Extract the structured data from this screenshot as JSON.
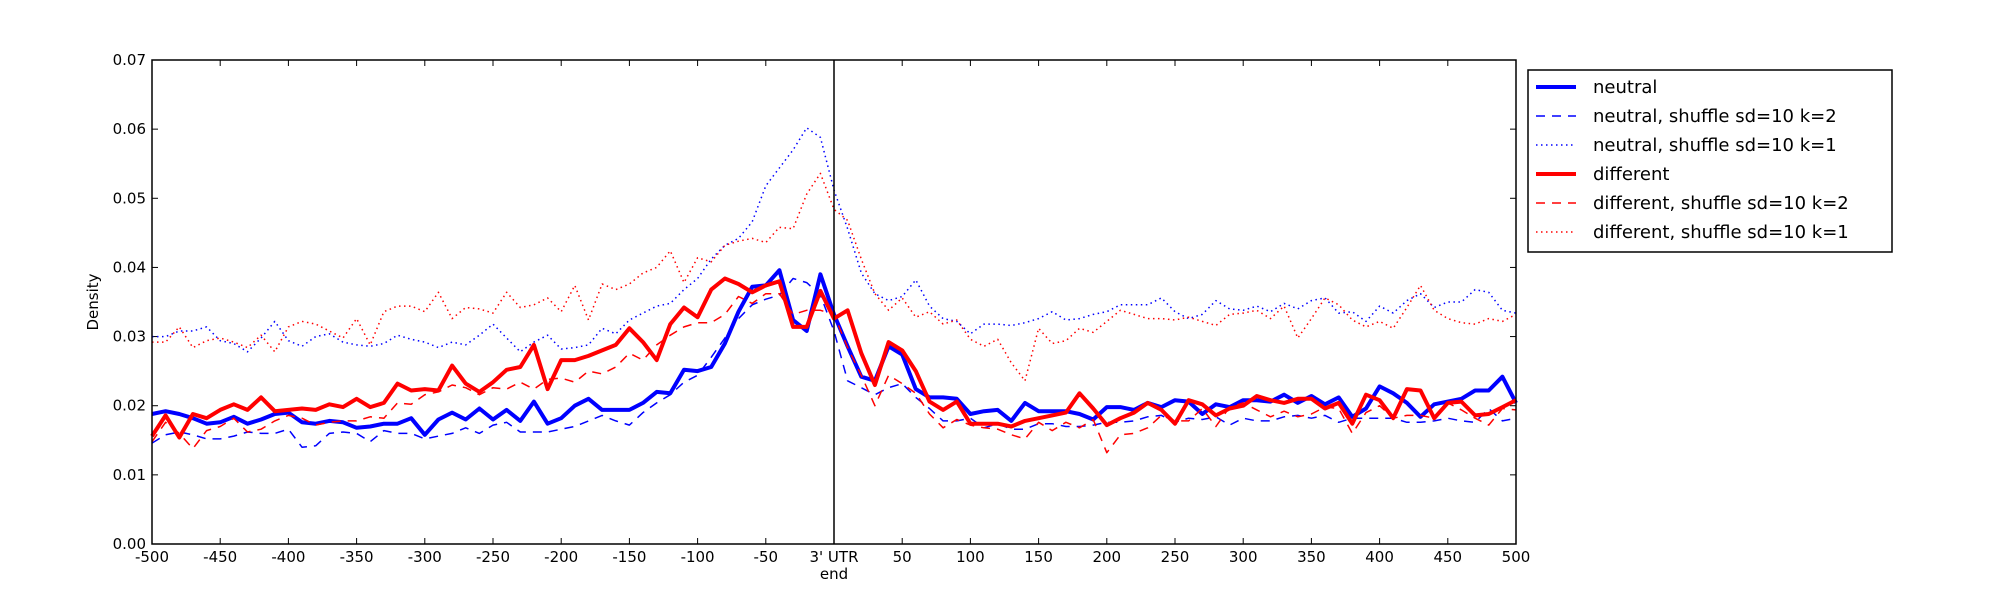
{
  "chart_data": {
    "type": "line",
    "title": "",
    "xlabel": "",
    "ylabel": "Density",
    "xlim": [
      -500,
      500
    ],
    "ylim": [
      0,
      0.07
    ],
    "xticks": [
      -500,
      -450,
      -400,
      -350,
      -300,
      -250,
      -200,
      -150,
      -100,
      -50,
      0,
      50,
      100,
      150,
      200,
      250,
      300,
      350,
      400,
      450,
      500
    ],
    "xtick_labels": [
      "-500",
      "-450",
      "-400",
      "-350",
      "-300",
      "-250",
      "-200",
      "-150",
      "-100",
      "-50",
      "3' UTR",
      "50",
      "100",
      "150",
      "200",
      "250",
      "300",
      "350",
      "400",
      "450",
      "500"
    ],
    "xtick_sublabel": "end",
    "yticks": [
      0,
      0.01,
      0.02,
      0.03,
      0.04,
      0.05,
      0.06,
      0.07
    ],
    "ytick_labels": [
      "0.00",
      "0.01",
      "0.02",
      "0.03",
      "0.04",
      "0.05",
      "0.06",
      "0.07"
    ],
    "vline_x": 0,
    "grid": false,
    "legend_position": "outside-right-top",
    "x": [
      -500,
      -490,
      -480,
      -470,
      -460,
      -450,
      -440,
      -430,
      -420,
      -410,
      -400,
      -390,
      -380,
      -370,
      -360,
      -350,
      -340,
      -330,
      -320,
      -310,
      -300,
      -290,
      -280,
      -270,
      -260,
      -250,
      -240,
      -230,
      -220,
      -210,
      -200,
      -190,
      -180,
      -170,
      -160,
      -150,
      -140,
      -130,
      -120,
      -110,
      -100,
      -90,
      -80,
      -70,
      -60,
      -50,
      -40,
      -30,
      -20,
      -10,
      0,
      10,
      20,
      30,
      40,
      50,
      60,
      70,
      80,
      90,
      100,
      110,
      120,
      130,
      140,
      150,
      160,
      170,
      180,
      190,
      200,
      210,
      220,
      230,
      240,
      250,
      260,
      270,
      280,
      290,
      300,
      310,
      320,
      330,
      340,
      350,
      360,
      370,
      380,
      390,
      400,
      410,
      420,
      430,
      440,
      450,
      460,
      470,
      480,
      490,
      500
    ],
    "series": [
      {
        "name": "neutral",
        "color": "#0000ff",
        "style": "solid",
        "width": 4,
        "values": [
          0.0188,
          0.0192,
          0.0188,
          0.0182,
          0.0174,
          0.0176,
          0.0184,
          0.0174,
          0.018,
          0.0188,
          0.019,
          0.0176,
          0.0174,
          0.0178,
          0.0176,
          0.0168,
          0.017,
          0.0174,
          0.0174,
          0.0182,
          0.0158,
          0.018,
          0.019,
          0.018,
          0.0196,
          0.018,
          0.0194,
          0.0178,
          0.0206,
          0.0174,
          0.0182,
          0.02,
          0.021,
          0.0194,
          0.0194,
          0.0194,
          0.0204,
          0.022,
          0.0218,
          0.0252,
          0.025,
          0.0256,
          0.029,
          0.0336,
          0.0372,
          0.0374,
          0.0396,
          0.0324,
          0.0308,
          0.039,
          0.0332,
          0.0286,
          0.0242,
          0.0236,
          0.0286,
          0.0274,
          0.0224,
          0.0212,
          0.0212,
          0.021,
          0.0188,
          0.0192,
          0.0194,
          0.0178,
          0.0204,
          0.0192,
          0.0192,
          0.0192,
          0.0188,
          0.018,
          0.0198,
          0.0198,
          0.0194,
          0.0204,
          0.0198,
          0.0208,
          0.0206,
          0.0188,
          0.0202,
          0.0198,
          0.0208,
          0.0208,
          0.0206,
          0.0216,
          0.0204,
          0.0214,
          0.0202,
          0.0212,
          0.0184,
          0.0196,
          0.0228,
          0.0218,
          0.0204,
          0.0184,
          0.0202,
          0.0206,
          0.021,
          0.0222,
          0.0222,
          0.0242,
          0.0204
        ]
      },
      {
        "name": "neutral, shuffle sd=10 k=2",
        "color": "#0000ff",
        "style": "dashed",
        "width": 1.5,
        "values": [
          0.0146,
          0.0158,
          0.0162,
          0.0158,
          0.0152,
          0.0152,
          0.0156,
          0.0162,
          0.016,
          0.016,
          0.0166,
          0.014,
          0.0142,
          0.016,
          0.0162,
          0.016,
          0.0148,
          0.0164,
          0.016,
          0.016,
          0.0152,
          0.0156,
          0.016,
          0.0168,
          0.016,
          0.0172,
          0.0176,
          0.0162,
          0.0162,
          0.0162,
          0.0166,
          0.017,
          0.0178,
          0.0186,
          0.0178,
          0.0172,
          0.019,
          0.0204,
          0.0216,
          0.0234,
          0.0244,
          0.027,
          0.0298,
          0.0326,
          0.0346,
          0.0354,
          0.036,
          0.0384,
          0.0378,
          0.036,
          0.0308,
          0.0236,
          0.0226,
          0.0216,
          0.0226,
          0.0232,
          0.0212,
          0.0196,
          0.0178,
          0.0178,
          0.0182,
          0.0168,
          0.0174,
          0.0166,
          0.0166,
          0.0174,
          0.0174,
          0.017,
          0.017,
          0.0172,
          0.0176,
          0.0176,
          0.0178,
          0.0184,
          0.0186,
          0.0176,
          0.0182,
          0.018,
          0.0184,
          0.0172,
          0.0182,
          0.0178,
          0.0178,
          0.0184,
          0.0186,
          0.0182,
          0.0186,
          0.0176,
          0.0182,
          0.0182,
          0.0182,
          0.0182,
          0.0176,
          0.0176,
          0.0178,
          0.0182,
          0.0178,
          0.0176,
          0.0196,
          0.0178,
          0.0182
        ]
      },
      {
        "name": "neutral, shuffle sd=10 k=1",
        "color": "#0000ff",
        "style": "dotted",
        "width": 1.5,
        "values": [
          0.03,
          0.03,
          0.0308,
          0.0308,
          0.0314,
          0.0294,
          0.029,
          0.0278,
          0.0298,
          0.0322,
          0.0294,
          0.0286,
          0.03,
          0.0304,
          0.0292,
          0.0288,
          0.0286,
          0.029,
          0.0302,
          0.0296,
          0.0292,
          0.0284,
          0.0292,
          0.0288,
          0.0302,
          0.0318,
          0.0298,
          0.0278,
          0.0292,
          0.0302,
          0.0282,
          0.0284,
          0.0288,
          0.0312,
          0.0304,
          0.0324,
          0.0334,
          0.0344,
          0.0348,
          0.0368,
          0.0384,
          0.0412,
          0.0432,
          0.0442,
          0.0466,
          0.0518,
          0.0544,
          0.057,
          0.0602,
          0.0588,
          0.0512,
          0.0456,
          0.0392,
          0.0362,
          0.0352,
          0.0358,
          0.0382,
          0.0344,
          0.0326,
          0.0322,
          0.0304,
          0.0318,
          0.0318,
          0.0316,
          0.032,
          0.0326,
          0.0336,
          0.0324,
          0.0326,
          0.0332,
          0.0336,
          0.0346,
          0.0346,
          0.0346,
          0.0356,
          0.0336,
          0.0326,
          0.0332,
          0.0352,
          0.034,
          0.0338,
          0.0344,
          0.0336,
          0.0348,
          0.034,
          0.0352,
          0.0356,
          0.0334,
          0.0336,
          0.0322,
          0.0344,
          0.0334,
          0.0352,
          0.0362,
          0.0342,
          0.035,
          0.035,
          0.0368,
          0.0364,
          0.0338,
          0.0334
        ]
      },
      {
        "name": "different",
        "color": "#ff0000",
        "style": "solid",
        "width": 4,
        "values": [
          0.0156,
          0.0186,
          0.0154,
          0.0188,
          0.0182,
          0.0194,
          0.0202,
          0.0194,
          0.0212,
          0.0192,
          0.0194,
          0.0196,
          0.0194,
          0.0202,
          0.0198,
          0.021,
          0.0198,
          0.0204,
          0.0232,
          0.0222,
          0.0224,
          0.0222,
          0.0258,
          0.0232,
          0.022,
          0.0234,
          0.0252,
          0.0256,
          0.0288,
          0.0224,
          0.0266,
          0.0266,
          0.0272,
          0.028,
          0.0288,
          0.0312,
          0.0292,
          0.0266,
          0.0318,
          0.0342,
          0.0328,
          0.0368,
          0.0384,
          0.0376,
          0.0364,
          0.0374,
          0.038,
          0.0314,
          0.0314,
          0.0366,
          0.0326,
          0.0338,
          0.0276,
          0.023,
          0.0292,
          0.028,
          0.025,
          0.0206,
          0.0194,
          0.0206,
          0.0174,
          0.0174,
          0.0174,
          0.017,
          0.0178,
          0.0182,
          0.0186,
          0.019,
          0.0218,
          0.0196,
          0.0172,
          0.0182,
          0.019,
          0.0204,
          0.0194,
          0.0174,
          0.0208,
          0.0202,
          0.0186,
          0.0196,
          0.02,
          0.0214,
          0.0208,
          0.0204,
          0.021,
          0.021,
          0.0196,
          0.0204,
          0.0174,
          0.0216,
          0.0208,
          0.0182,
          0.0224,
          0.0222,
          0.0182,
          0.0204,
          0.0206,
          0.0186,
          0.0188,
          0.0198,
          0.0208
        ]
      },
      {
        "name": "different, shuffle sd=10 k=2",
        "color": "#ff0000",
        "style": "dashed",
        "width": 1.5,
        "values": [
          0.0148,
          0.0176,
          0.016,
          0.0138,
          0.0164,
          0.017,
          0.0182,
          0.0162,
          0.0166,
          0.0178,
          0.0186,
          0.0182,
          0.0172,
          0.0176,
          0.0178,
          0.0178,
          0.0184,
          0.0182,
          0.0204,
          0.0202,
          0.0216,
          0.022,
          0.023,
          0.0226,
          0.0216,
          0.0226,
          0.0224,
          0.0234,
          0.0224,
          0.0238,
          0.024,
          0.0234,
          0.025,
          0.0246,
          0.0256,
          0.0276,
          0.0266,
          0.0288,
          0.0302,
          0.0314,
          0.032,
          0.032,
          0.0332,
          0.0358,
          0.0348,
          0.0362,
          0.0362,
          0.0332,
          0.0338,
          0.0338,
          0.0332,
          0.0284,
          0.0244,
          0.02,
          0.0244,
          0.0232,
          0.0218,
          0.0188,
          0.0168,
          0.018,
          0.0172,
          0.0168,
          0.0166,
          0.0158,
          0.0152,
          0.0176,
          0.0164,
          0.0176,
          0.0168,
          0.018,
          0.0132,
          0.0158,
          0.016,
          0.0168,
          0.0186,
          0.0178,
          0.0178,
          0.0196,
          0.017,
          0.0198,
          0.0204,
          0.0194,
          0.0184,
          0.0192,
          0.0184,
          0.0188,
          0.0198,
          0.0196,
          0.016,
          0.019,
          0.02,
          0.0182,
          0.0186,
          0.0186,
          0.0182,
          0.0204,
          0.0194,
          0.0182,
          0.0172,
          0.0196,
          0.0194
        ]
      },
      {
        "name": "different, shuffle sd=10 k=1",
        "color": "#ff0000",
        "style": "dotted",
        "width": 1.5,
        "values": [
          0.0292,
          0.0292,
          0.0314,
          0.0284,
          0.0294,
          0.0298,
          0.0292,
          0.0284,
          0.0302,
          0.0278,
          0.0314,
          0.0322,
          0.0318,
          0.0308,
          0.0298,
          0.0326,
          0.0288,
          0.0336,
          0.0344,
          0.0344,
          0.0336,
          0.0364,
          0.0326,
          0.0342,
          0.034,
          0.0334,
          0.0364,
          0.0342,
          0.0346,
          0.0356,
          0.0336,
          0.0374,
          0.0324,
          0.0376,
          0.0368,
          0.0376,
          0.0392,
          0.04,
          0.0424,
          0.0378,
          0.0414,
          0.0408,
          0.0432,
          0.0438,
          0.0442,
          0.0436,
          0.0458,
          0.0456,
          0.0506,
          0.0536,
          0.0484,
          0.0468,
          0.0412,
          0.0362,
          0.0338,
          0.0356,
          0.0328,
          0.0336,
          0.0318,
          0.0324,
          0.0296,
          0.0286,
          0.0296,
          0.0262,
          0.0236,
          0.0312,
          0.029,
          0.0294,
          0.0312,
          0.0306,
          0.0322,
          0.0338,
          0.0332,
          0.0326,
          0.0326,
          0.0324,
          0.0328,
          0.0322,
          0.0316,
          0.0332,
          0.0334,
          0.0338,
          0.0326,
          0.0344,
          0.0298,
          0.0326,
          0.0356,
          0.0346,
          0.0324,
          0.0314,
          0.0322,
          0.0312,
          0.0342,
          0.0374,
          0.0338,
          0.0326,
          0.032,
          0.0318,
          0.0326,
          0.0322,
          0.0332
        ]
      }
    ]
  }
}
